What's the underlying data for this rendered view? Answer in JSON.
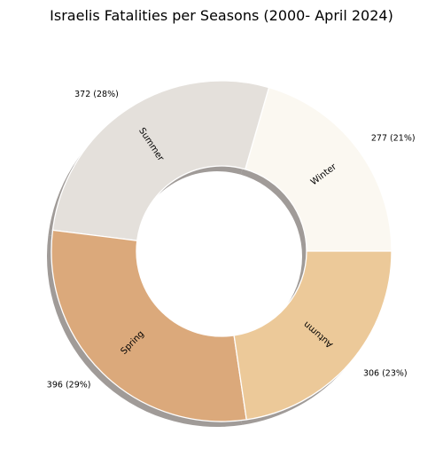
{
  "chart_data": {
    "type": "donut",
    "title": "Israelis Fatalities per Seasons (2000- April 2024)",
    "slices": [
      {
        "label": "Winter",
        "value": 277,
        "value_label": "277 (21%)",
        "color": "#fbf8f1"
      },
      {
        "label": "Summer",
        "value": 372,
        "value_label": "372 (28%)",
        "color": "#e4e0db"
      },
      {
        "label": "Spring",
        "value": 396,
        "value_label": "396 (29%)",
        "color": "#dba97b"
      },
      {
        "label": "Autumn",
        "value": 306,
        "value_label": "306 (23%)",
        "color": "#ecc999"
      }
    ],
    "start_angle_deg": 0,
    "direction": "counterclockwise",
    "hole_ratio": 0.5,
    "shadow": true,
    "edge_color": "#ffffff"
  }
}
